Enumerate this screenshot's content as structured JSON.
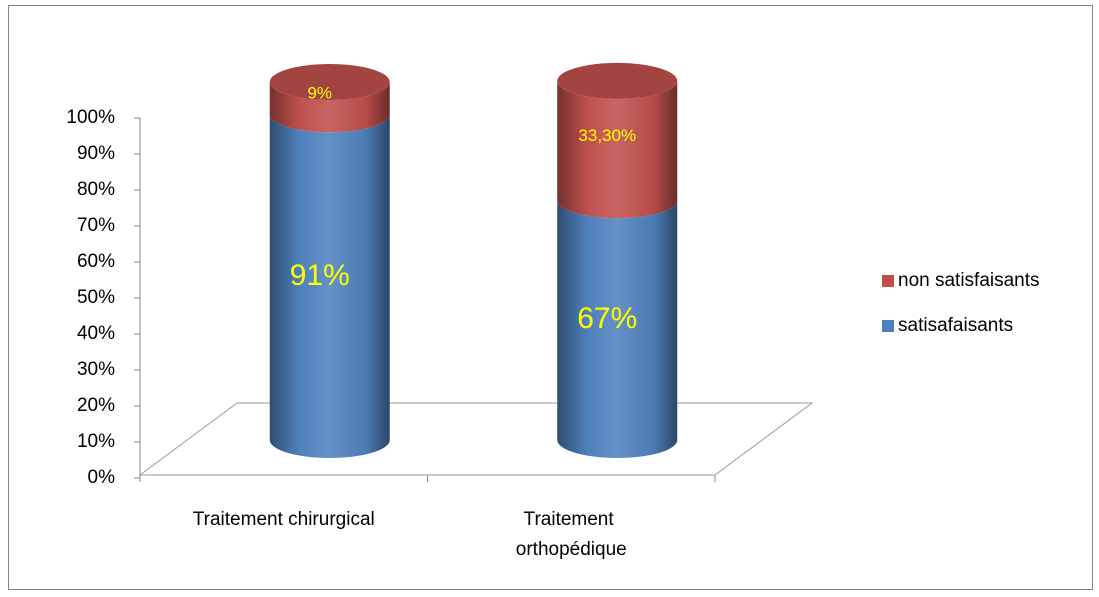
{
  "chart_data": {
    "type": "stacked-cylinder",
    "categories": [
      "Traitement chirurgical",
      "Traitement orthopédique"
    ],
    "series": [
      {
        "name": "satisafaisants",
        "color": "#4f81bd",
        "values": [
          91,
          67
        ],
        "value_labels": [
          "91%",
          "67%"
        ]
      },
      {
        "name": "non satisfaisants",
        "color": "#c0504d",
        "values": [
          9,
          33.3
        ],
        "value_labels": [
          "9%",
          "33,30%"
        ]
      }
    ],
    "ylim": [
      0,
      100
    ],
    "yticks": [
      {
        "value": 0,
        "label": "0%"
      },
      {
        "value": 10,
        "label": "10%"
      },
      {
        "value": 20,
        "label": "20%"
      },
      {
        "value": 30,
        "label": "30%"
      },
      {
        "value": 40,
        "label": "40%"
      },
      {
        "value": 50,
        "label": "50%"
      },
      {
        "value": 60,
        "label": "60%"
      },
      {
        "value": 70,
        "label": "70%"
      },
      {
        "value": 80,
        "label": "80%"
      },
      {
        "value": 90,
        "label": "90%"
      },
      {
        "value": 100,
        "label": "100%"
      }
    ],
    "legend": "right"
  }
}
